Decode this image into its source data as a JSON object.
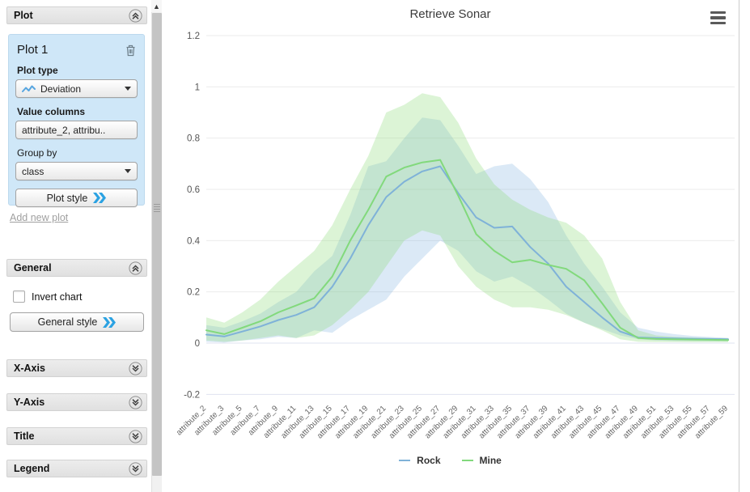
{
  "sidebar": {
    "plot_panel_title": "Plot",
    "plot_card": {
      "title": "Plot 1",
      "plot_type_label": "Plot type",
      "plot_type_value": "Deviation",
      "value_columns_label": "Value columns",
      "value_columns_value": "attribute_2, attribu..",
      "group_by_label": "Group by",
      "group_by_value": "class",
      "plot_style_label": "Plot style"
    },
    "add_new_plot_label": "Add new plot",
    "general_panel": {
      "title": "General",
      "invert_chart_label": "Invert chart",
      "style_button_label": "General style"
    },
    "collapsed_panels": [
      {
        "label": "X-Axis"
      },
      {
        "label": "Y-Axis"
      },
      {
        "label": "Title"
      },
      {
        "label": "Legend"
      }
    ]
  },
  "chart": {
    "title": "Retrieve Sonar",
    "legend": [
      {
        "label": "Rock",
        "color": "#7fb2d8"
      },
      {
        "label": "Mine",
        "color": "#82d97c"
      }
    ]
  },
  "chart_data": {
    "type": "line",
    "subtype": "deviation-band",
    "title": "Retrieve Sonar",
    "xlabel": "",
    "ylabel": "",
    "ylim": [
      -0.2,
      1.2
    ],
    "yticks": [
      -0.2,
      0,
      0.2,
      0.4,
      0.6,
      0.8,
      1,
      1.2
    ],
    "ytick_labels": [
      "-0.2",
      "0",
      "0.2",
      "0.4",
      "0.6",
      "0.8",
      "1",
      "1.2"
    ],
    "grid": "horizontal",
    "legend_position": "bottom",
    "categories": [
      "attribute_2",
      "attribute_3",
      "attribute_5",
      "attribute_7",
      "attribute_9",
      "attribute_11",
      "attribute_13",
      "attribute_15",
      "attribute_17",
      "attribute_19",
      "attribute_21",
      "attribute_23",
      "attribute_25",
      "attribute_27",
      "attribute_29",
      "attribute_31",
      "attribute_33",
      "attribute_35",
      "attribute_37",
      "attribute_39",
      "attribute_41",
      "attribute_43",
      "attribute_45",
      "attribute_47",
      "attribute_49",
      "attribute_51",
      "attribute_53",
      "attribute_55",
      "attribute_57",
      "attribute_59"
    ],
    "series": [
      {
        "name": "Rock",
        "color": "#7fb2d8",
        "band_fill": "rgba(122,173,220,0.27)",
        "values": [
          0.033,
          0.026,
          0.045,
          0.065,
          0.09,
          0.11,
          0.14,
          0.22,
          0.33,
          0.46,
          0.57,
          0.63,
          0.67,
          0.69,
          0.585,
          0.49,
          0.45,
          0.455,
          0.375,
          0.31,
          0.22,
          0.16,
          0.1,
          0.045,
          0.022,
          0.02,
          0.018,
          0.017,
          0.016,
          0.015
        ],
        "band_upper": [
          0.07,
          0.06,
          0.085,
          0.115,
          0.16,
          0.2,
          0.28,
          0.34,
          0.5,
          0.69,
          0.71,
          0.8,
          0.88,
          0.87,
          0.77,
          0.66,
          0.69,
          0.7,
          0.64,
          0.55,
          0.42,
          0.31,
          0.22,
          0.12,
          0.06,
          0.045,
          0.035,
          0.028,
          0.024,
          0.02
        ],
        "band_lower": [
          0.005,
          0.002,
          0.01,
          0.015,
          0.025,
          0.02,
          0.05,
          0.04,
          0.09,
          0.13,
          0.17,
          0.26,
          0.33,
          0.4,
          0.36,
          0.28,
          0.24,
          0.26,
          0.22,
          0.17,
          0.115,
          0.08,
          0.055,
          0.03,
          0.015,
          0.01,
          0.008,
          0.008,
          0.007,
          0.007
        ]
      },
      {
        "name": "Mine",
        "color": "#82d97c",
        "band_fill": "rgba(140,217,120,0.30)",
        "values": [
          0.05,
          0.035,
          0.06,
          0.085,
          0.12,
          0.147,
          0.175,
          0.26,
          0.4,
          0.52,
          0.65,
          0.685,
          0.705,
          0.715,
          0.575,
          0.425,
          0.36,
          0.315,
          0.325,
          0.305,
          0.29,
          0.245,
          0.155,
          0.06,
          0.02,
          0.016,
          0.015,
          0.014,
          0.013,
          0.012
        ],
        "band_upper": [
          0.1,
          0.08,
          0.12,
          0.17,
          0.24,
          0.3,
          0.36,
          0.46,
          0.6,
          0.73,
          0.9,
          0.93,
          0.975,
          0.96,
          0.86,
          0.72,
          0.62,
          0.56,
          0.52,
          0.49,
          0.47,
          0.42,
          0.33,
          0.16,
          0.05,
          0.03,
          0.025,
          0.022,
          0.02,
          0.02
        ],
        "band_lower": [
          0.01,
          0.005,
          0.01,
          0.02,
          0.03,
          0.02,
          0.03,
          0.07,
          0.13,
          0.2,
          0.3,
          0.4,
          0.44,
          0.42,
          0.3,
          0.22,
          0.17,
          0.14,
          0.14,
          0.13,
          0.11,
          0.08,
          0.05,
          0.015,
          0.005,
          0.004,
          0.004,
          0.003,
          0.003,
          0.003
        ]
      }
    ]
  }
}
